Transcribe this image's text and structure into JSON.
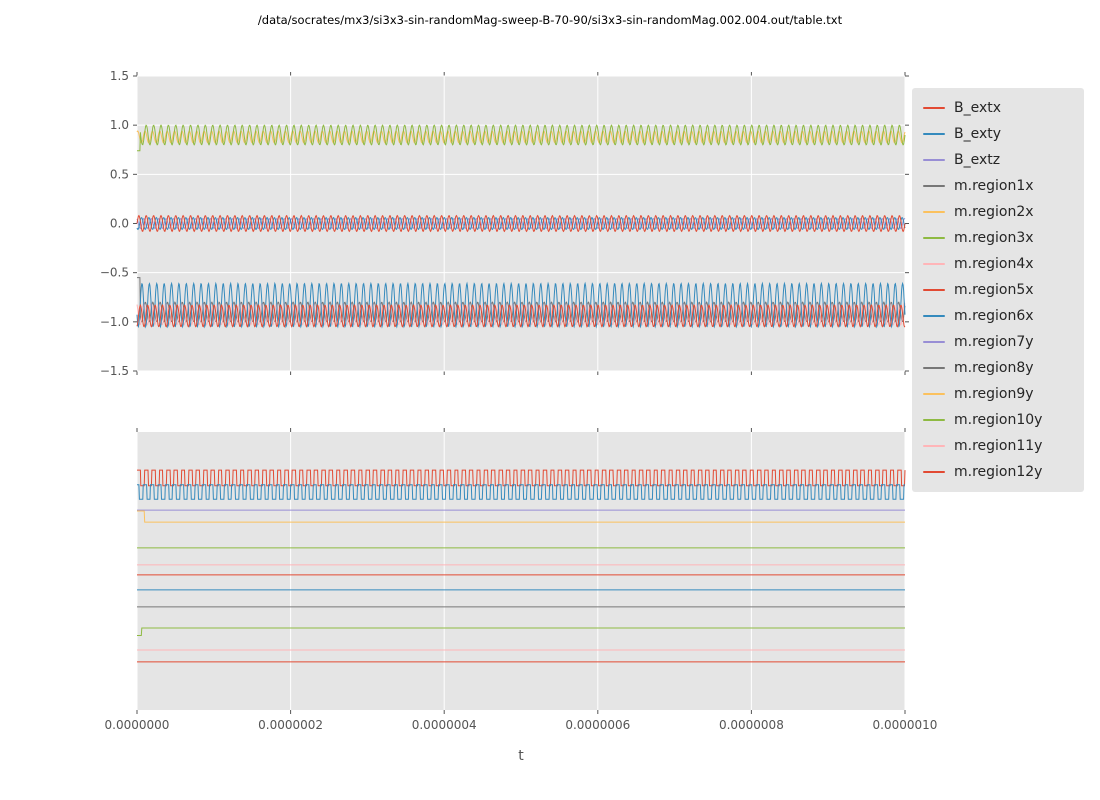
{
  "title": "/data/socrates/mx3/si3x3-sin-randomMag-sweep-B-70-90/si3x3-sin-randomMag.002.004.out/table.txt",
  "xlabel": "t",
  "axes": {
    "background": "#E5E5E5",
    "grid_color": "#FFFFFF",
    "tick_color": "#555555",
    "text_color": "#555555"
  },
  "palette": {
    "red": "#E24A33",
    "blue": "#348ABD",
    "purple": "#988ED5",
    "gray": "#777777",
    "orange": "#FBC15E",
    "green": "#8EBA42",
    "pink": "#FFB5B8"
  },
  "legend": {
    "items": [
      {
        "label": "B_extx",
        "color": "#E24A33"
      },
      {
        "label": "B_exty",
        "color": "#348ABD"
      },
      {
        "label": "B_extz",
        "color": "#988ED5"
      },
      {
        "label": "m.region1x",
        "color": "#777777"
      },
      {
        "label": "m.region2x",
        "color": "#FBC15E"
      },
      {
        "label": "m.region3x",
        "color": "#8EBA42"
      },
      {
        "label": "m.region4x",
        "color": "#FFB5B8"
      },
      {
        "label": "m.region5x",
        "color": "#E24A33"
      },
      {
        "label": "m.region6x",
        "color": "#348ABD"
      },
      {
        "label": "m.region7y",
        "color": "#988ED5"
      },
      {
        "label": "m.region8y",
        "color": "#777777"
      },
      {
        "label": "m.region9y",
        "color": "#FBC15E"
      },
      {
        "label": "m.region10y",
        "color": "#8EBA42"
      },
      {
        "label": "m.region11y",
        "color": "#FFB5B8"
      },
      {
        "label": "m.region12y",
        "color": "#E24A33"
      }
    ]
  },
  "chart_data": [
    {
      "type": "line",
      "subplot": "top",
      "xlim": [
        0,
        1e-06
      ],
      "ylim": [
        -1.5,
        1.5
      ],
      "grid": true,
      "show_x_labels": false,
      "xticks": [
        {
          "u": 0.0,
          "label": "0.0000000"
        },
        {
          "u": 0.2,
          "label": "0.0000002"
        },
        {
          "u": 0.4,
          "label": "0.0000004"
        },
        {
          "u": 0.6,
          "label": "0.0000006"
        },
        {
          "u": 0.8,
          "label": "0.0000008"
        },
        {
          "u": 1.0,
          "label": "0.0000010"
        }
      ],
      "yticks": [
        {
          "v": 1.5,
          "label": "1.5"
        },
        {
          "v": 1.0,
          "label": "1.0"
        },
        {
          "v": 0.5,
          "label": "0.5"
        },
        {
          "v": 0.0,
          "label": "0.0"
        },
        {
          "v": -0.5,
          "label": "−0.5"
        },
        {
          "v": -1.0,
          "label": "−1.0"
        },
        {
          "v": -1.5,
          "label": "−1.5"
        }
      ],
      "series": [
        {
          "name": "m.region1x",
          "color": "#777777",
          "wave": "sine",
          "center": -0.9,
          "amplitude": 0.1,
          "cycles": 104,
          "phase": 0.7,
          "start": -0.55,
          "start_u": 0.004
        },
        {
          "name": "m.region4x",
          "color": "#FFB5B8",
          "wave": "sine",
          "center": -0.92,
          "amplitude": 0.11,
          "cycles": 104,
          "phase": 2.1
        },
        {
          "name": "m.region6x",
          "color": "#348ABD",
          "wave": "sine",
          "center": -0.83,
          "amplitude": 0.22,
          "cycles": 104,
          "phase": 3.6
        },
        {
          "name": "m.region5x",
          "color": "#E24A33",
          "wave": "sine",
          "center": -0.94,
          "amplitude": 0.11,
          "cycles": 104,
          "phase": 5.0
        },
        {
          "name": "m.region2x",
          "color": "#FBC15E",
          "wave": "sine",
          "center": 0.88,
          "amplitude": 0.06,
          "cycles": 104,
          "phase": 1.0
        },
        {
          "name": "m.region3x",
          "color": "#8EBA42",
          "wave": "sine",
          "center": 0.9,
          "amplitude": 0.1,
          "cycles": 104,
          "phase": 0.0,
          "start": 0.74,
          "start_u": 0.004
        },
        {
          "name": "B_extz",
          "color": "#988ED5",
          "wave": "sine",
          "center": 0.0,
          "amplitude": 0.05,
          "cycles": 104,
          "phase": 2.0
        },
        {
          "name": "B_exty",
          "color": "#348ABD",
          "wave": "sine",
          "center": 0.0,
          "amplitude": 0.06,
          "cycles": 104,
          "phase": 4.0
        },
        {
          "name": "B_extx",
          "color": "#E24A33",
          "wave": "sine",
          "center": 0.0,
          "amplitude": 0.08,
          "cycles": 104,
          "phase": 0.0
        }
      ]
    },
    {
      "type": "line",
      "subplot": "bottom",
      "xlim": [
        0,
        1e-06
      ],
      "ylim": [
        0,
        1
      ],
      "grid": true,
      "show_x_labels": true,
      "xticks": [
        {
          "u": 0.0,
          "label": "0.0000000"
        },
        {
          "u": 0.2,
          "label": "0.0000002"
        },
        {
          "u": 0.4,
          "label": "0.0000004"
        },
        {
          "u": 0.6,
          "label": "0.0000006"
        },
        {
          "u": 0.8,
          "label": "0.0000008"
        },
        {
          "u": 1.0,
          "label": "0.0000010"
        }
      ],
      "yticks": [],
      "series": [
        {
          "name": "B_extx",
          "color": "#E24A33",
          "wave": "square",
          "center": 0.835,
          "amplitude": 0.028,
          "cycles": 104,
          "phase": 0.0
        },
        {
          "name": "B_exty",
          "color": "#348ABD",
          "wave": "square",
          "center": 0.784,
          "amplitude": 0.026,
          "cycles": 104,
          "phase": 1.2
        },
        {
          "name": "m.region7y",
          "color": "#988ED5",
          "wave": "flat",
          "center": 0.719
        },
        {
          "name": "m.region9y",
          "color": "#FBC15E",
          "wave": "flat",
          "center": 0.676,
          "start": 0.716,
          "start_u": 0.01
        },
        {
          "name": "m.region3x",
          "color": "#8EBA42",
          "wave": "flat",
          "center": 0.583
        },
        {
          "name": "m.region4x",
          "color": "#FFB5B8",
          "wave": "flat",
          "center": 0.522
        },
        {
          "name": "m.region5x",
          "color": "#E24A33",
          "wave": "flat",
          "center": 0.486
        },
        {
          "name": "m.region6x",
          "color": "#348ABD",
          "wave": "flat",
          "center": 0.432
        },
        {
          "name": "m.region8y",
          "color": "#777777",
          "wave": "flat",
          "center": 0.371
        },
        {
          "name": "m.region10y",
          "color": "#8EBA42",
          "wave": "flat",
          "center": 0.295,
          "start": 0.268,
          "start_u": 0.006
        },
        {
          "name": "m.region11y",
          "color": "#FFB5B8",
          "wave": "flat",
          "center": 0.216
        },
        {
          "name": "m.region12y",
          "color": "#E24A33",
          "wave": "flat",
          "center": 0.173
        }
      ]
    }
  ]
}
